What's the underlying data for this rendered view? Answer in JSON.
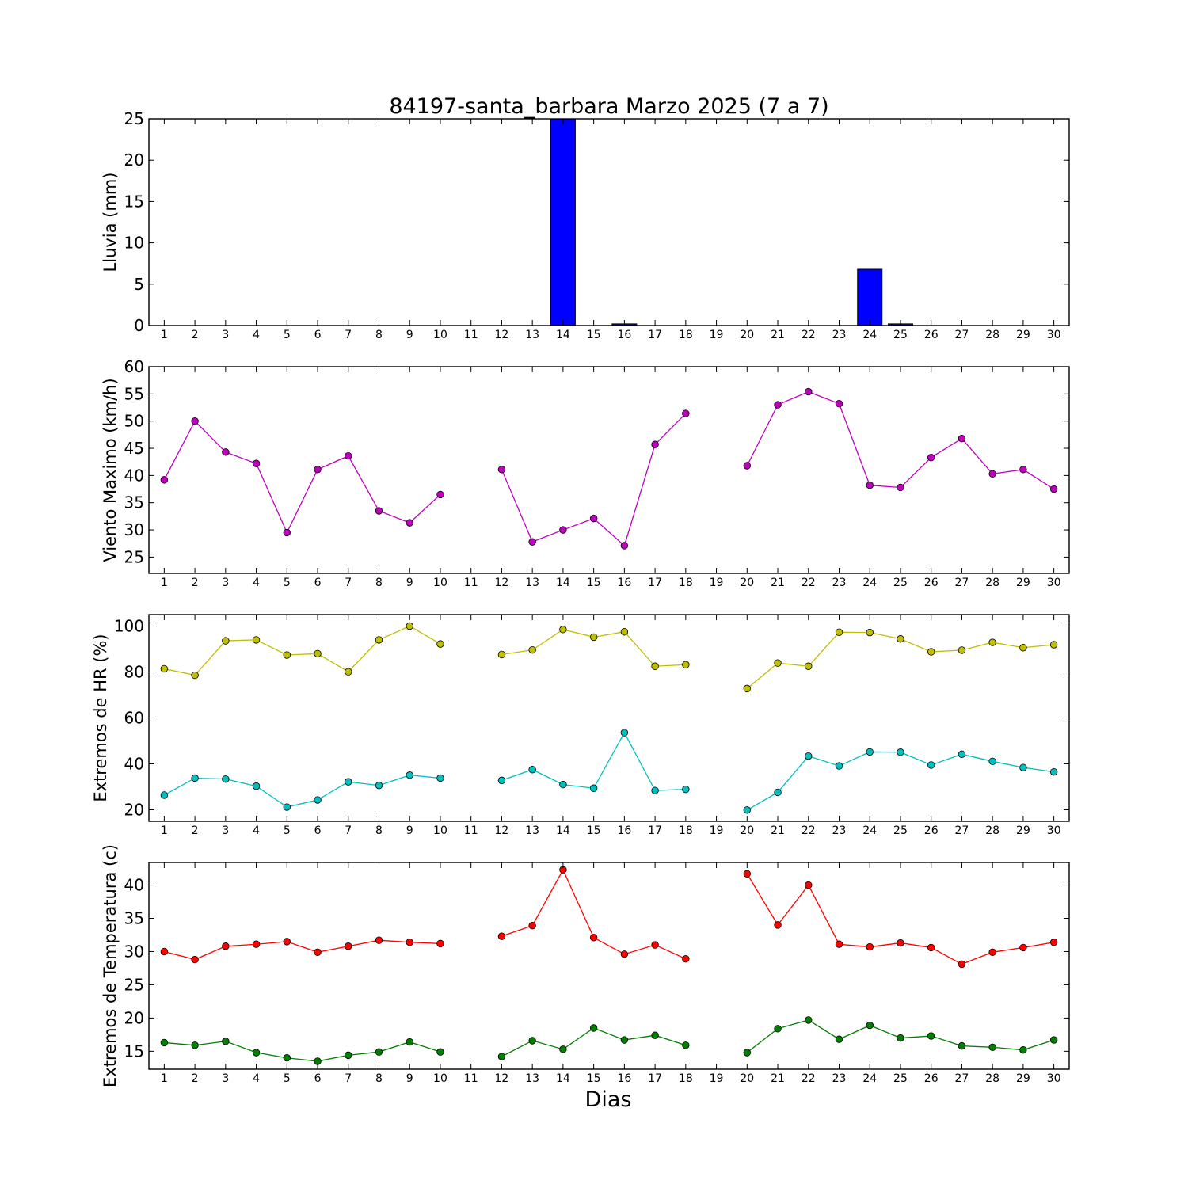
{
  "chart_data": {
    "title": "84197-santa_barbara Marzo 2025  (7 a 7)",
    "xlabel": "Dias",
    "days": [
      1,
      2,
      3,
      4,
      5,
      6,
      7,
      8,
      9,
      10,
      11,
      12,
      13,
      14,
      15,
      16,
      17,
      18,
      19,
      20,
      21,
      22,
      23,
      24,
      25,
      26,
      27,
      28,
      29,
      30
    ],
    "panels": [
      {
        "type": "bar",
        "ylabel": "Lluvia (mm)",
        "ylim": [
          0,
          25
        ],
        "yticks": [
          0,
          5,
          10,
          15,
          20,
          25
        ],
        "grid": false,
        "series": [
          {
            "color": "#0000ff",
            "values": [
              0,
              0,
              0,
              0,
              0,
              0,
              0,
              0,
              0,
              0,
              0,
              0,
              0,
              25,
              0,
              0.2,
              0,
              0,
              0,
              0,
              0,
              0,
              0,
              6.8,
              0.2,
              0,
              0,
              0,
              0,
              0
            ]
          }
        ]
      },
      {
        "type": "line",
        "ylabel": "Viento Maximo (km/h)",
        "ylim": [
          22,
          60
        ],
        "yticks": [
          25,
          30,
          35,
          40,
          45,
          50,
          55,
          60
        ],
        "grid": false,
        "series": [
          {
            "color": "#bf00bf",
            "values": [
              39.2,
              50.0,
              44.3,
              42.2,
              29.5,
              41.1,
              43.6,
              33.5,
              31.3,
              36.5,
              null,
              41.1,
              27.8,
              30.0,
              32.1,
              27.1,
              45.7,
              51.4,
              null,
              41.8,
              53.0,
              55.4,
              53.2,
              38.2,
              37.8,
              43.3,
              46.8,
              40.3,
              41.1,
              37.5
            ]
          }
        ]
      },
      {
        "type": "line",
        "ylabel": "Extremos de HR (%)",
        "ylim": [
          15,
          105
        ],
        "yticks": [
          20,
          40,
          60,
          80,
          100
        ],
        "grid": false,
        "series": [
          {
            "color": "#bfbf00",
            "values": [
              81.4,
              78.6,
              93.6,
              94.0,
              87.4,
              88.0,
              80.1,
              94.0,
              100.0,
              92.2,
              null,
              87.6,
              89.6,
              98.5,
              95.2,
              97.5,
              82.5,
              83.2,
              null,
              72.8,
              83.9,
              82.5,
              97.3,
              97.2,
              94.4,
              88.8,
              89.5,
              92.9,
              90.6,
              91.9
            ]
          },
          {
            "color": "#00bfbf",
            "values": [
              26.4,
              33.8,
              33.4,
              30.3,
              21.2,
              24.3,
              32.2,
              30.6,
              35.1,
              33.8,
              null,
              32.8,
              37.5,
              31.0,
              29.4,
              53.6,
              28.4,
              28.9,
              null,
              19.9,
              27.6,
              43.4,
              39.1,
              45.2,
              45.1,
              39.5,
              44.2,
              41.1,
              38.4,
              36.5
            ]
          }
        ]
      },
      {
        "type": "line",
        "ylabel": "Extremos de Temperatura (c)",
        "ylim": [
          12.3,
          43.4
        ],
        "yticks": [
          15,
          20,
          25,
          30,
          35,
          40
        ],
        "grid": false,
        "series": [
          {
            "color": "#ff0000",
            "values": [
              30.0,
              28.8,
              30.8,
              31.1,
              31.5,
              29.9,
              30.8,
              31.7,
              31.4,
              31.2,
              null,
              32.3,
              33.9,
              42.3,
              32.1,
              29.6,
              31.0,
              28.9,
              null,
              41.7,
              34.0,
              40.0,
              31.1,
              30.7,
              31.3,
              30.6,
              28.1,
              29.9,
              30.6,
              31.4
            ]
          },
          {
            "color": "#007f00",
            "values": [
              16.3,
              15.9,
              16.5,
              14.8,
              14.0,
              13.5,
              14.4,
              14.9,
              16.4,
              14.9,
              null,
              14.2,
              16.6,
              15.3,
              18.5,
              16.7,
              17.4,
              15.9,
              null,
              14.8,
              18.4,
              19.7,
              16.8,
              18.9,
              17.0,
              17.3,
              15.8,
              15.6,
              15.2,
              16.7
            ]
          }
        ]
      }
    ]
  }
}
